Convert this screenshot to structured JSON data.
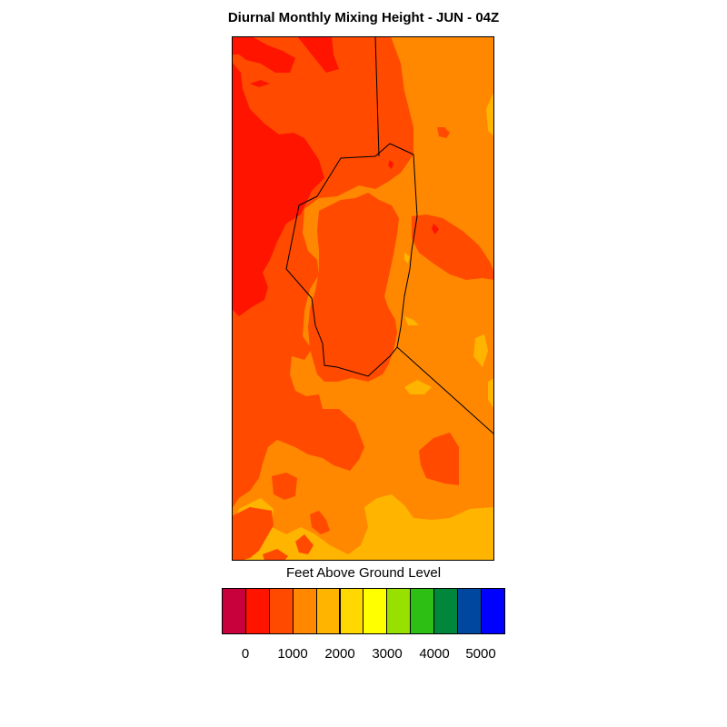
{
  "title": "Diurnal Monthly Mixing Height - JUN - 04Z",
  "colorbar": {
    "title": "Feet Above Ground Level",
    "colors": [
      "#c8003c",
      "#ff1400",
      "#ff4a00",
      "#ff8800",
      "#ffb400",
      "#ffd800",
      "#ffff00",
      "#98e000",
      "#2dbf14",
      "#00873c",
      "#0047a0",
      "#0000ff"
    ],
    "tick_labels": [
      "0",
      "1000",
      "2000",
      "3000",
      "4000",
      "5000"
    ]
  },
  "map_palette": {
    "below_0": "#ff1400",
    "band_0_500": "#ff4a00",
    "band_500_1000": "#ff8800",
    "band_1000_1500": "#ffb400",
    "boundary": "#000000"
  }
}
